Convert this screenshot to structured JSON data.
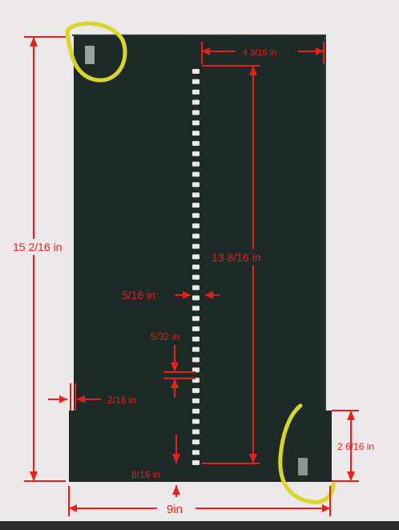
{
  "colors": {
    "background": "#ece8e9",
    "panel": "#1e2a28",
    "dimension": "#e8201c",
    "highlight": "#d9d62a",
    "slot": "#e9e9e9"
  },
  "dimensions": {
    "overall_height": "15 2/16 in",
    "top_right_offset": "4 3/16 in",
    "slot_column_length": "13 8/16 in",
    "slot_width": "5/16 in",
    "slot_spacing": "5/32 in",
    "notch_width": "2/16 in",
    "bottom_offset": "8/16 in",
    "overall_width": "9in",
    "notch_height": "2 6/16 in"
  },
  "diagram": {
    "slot_count": 39,
    "highlighted_tabs": 2
  }
}
